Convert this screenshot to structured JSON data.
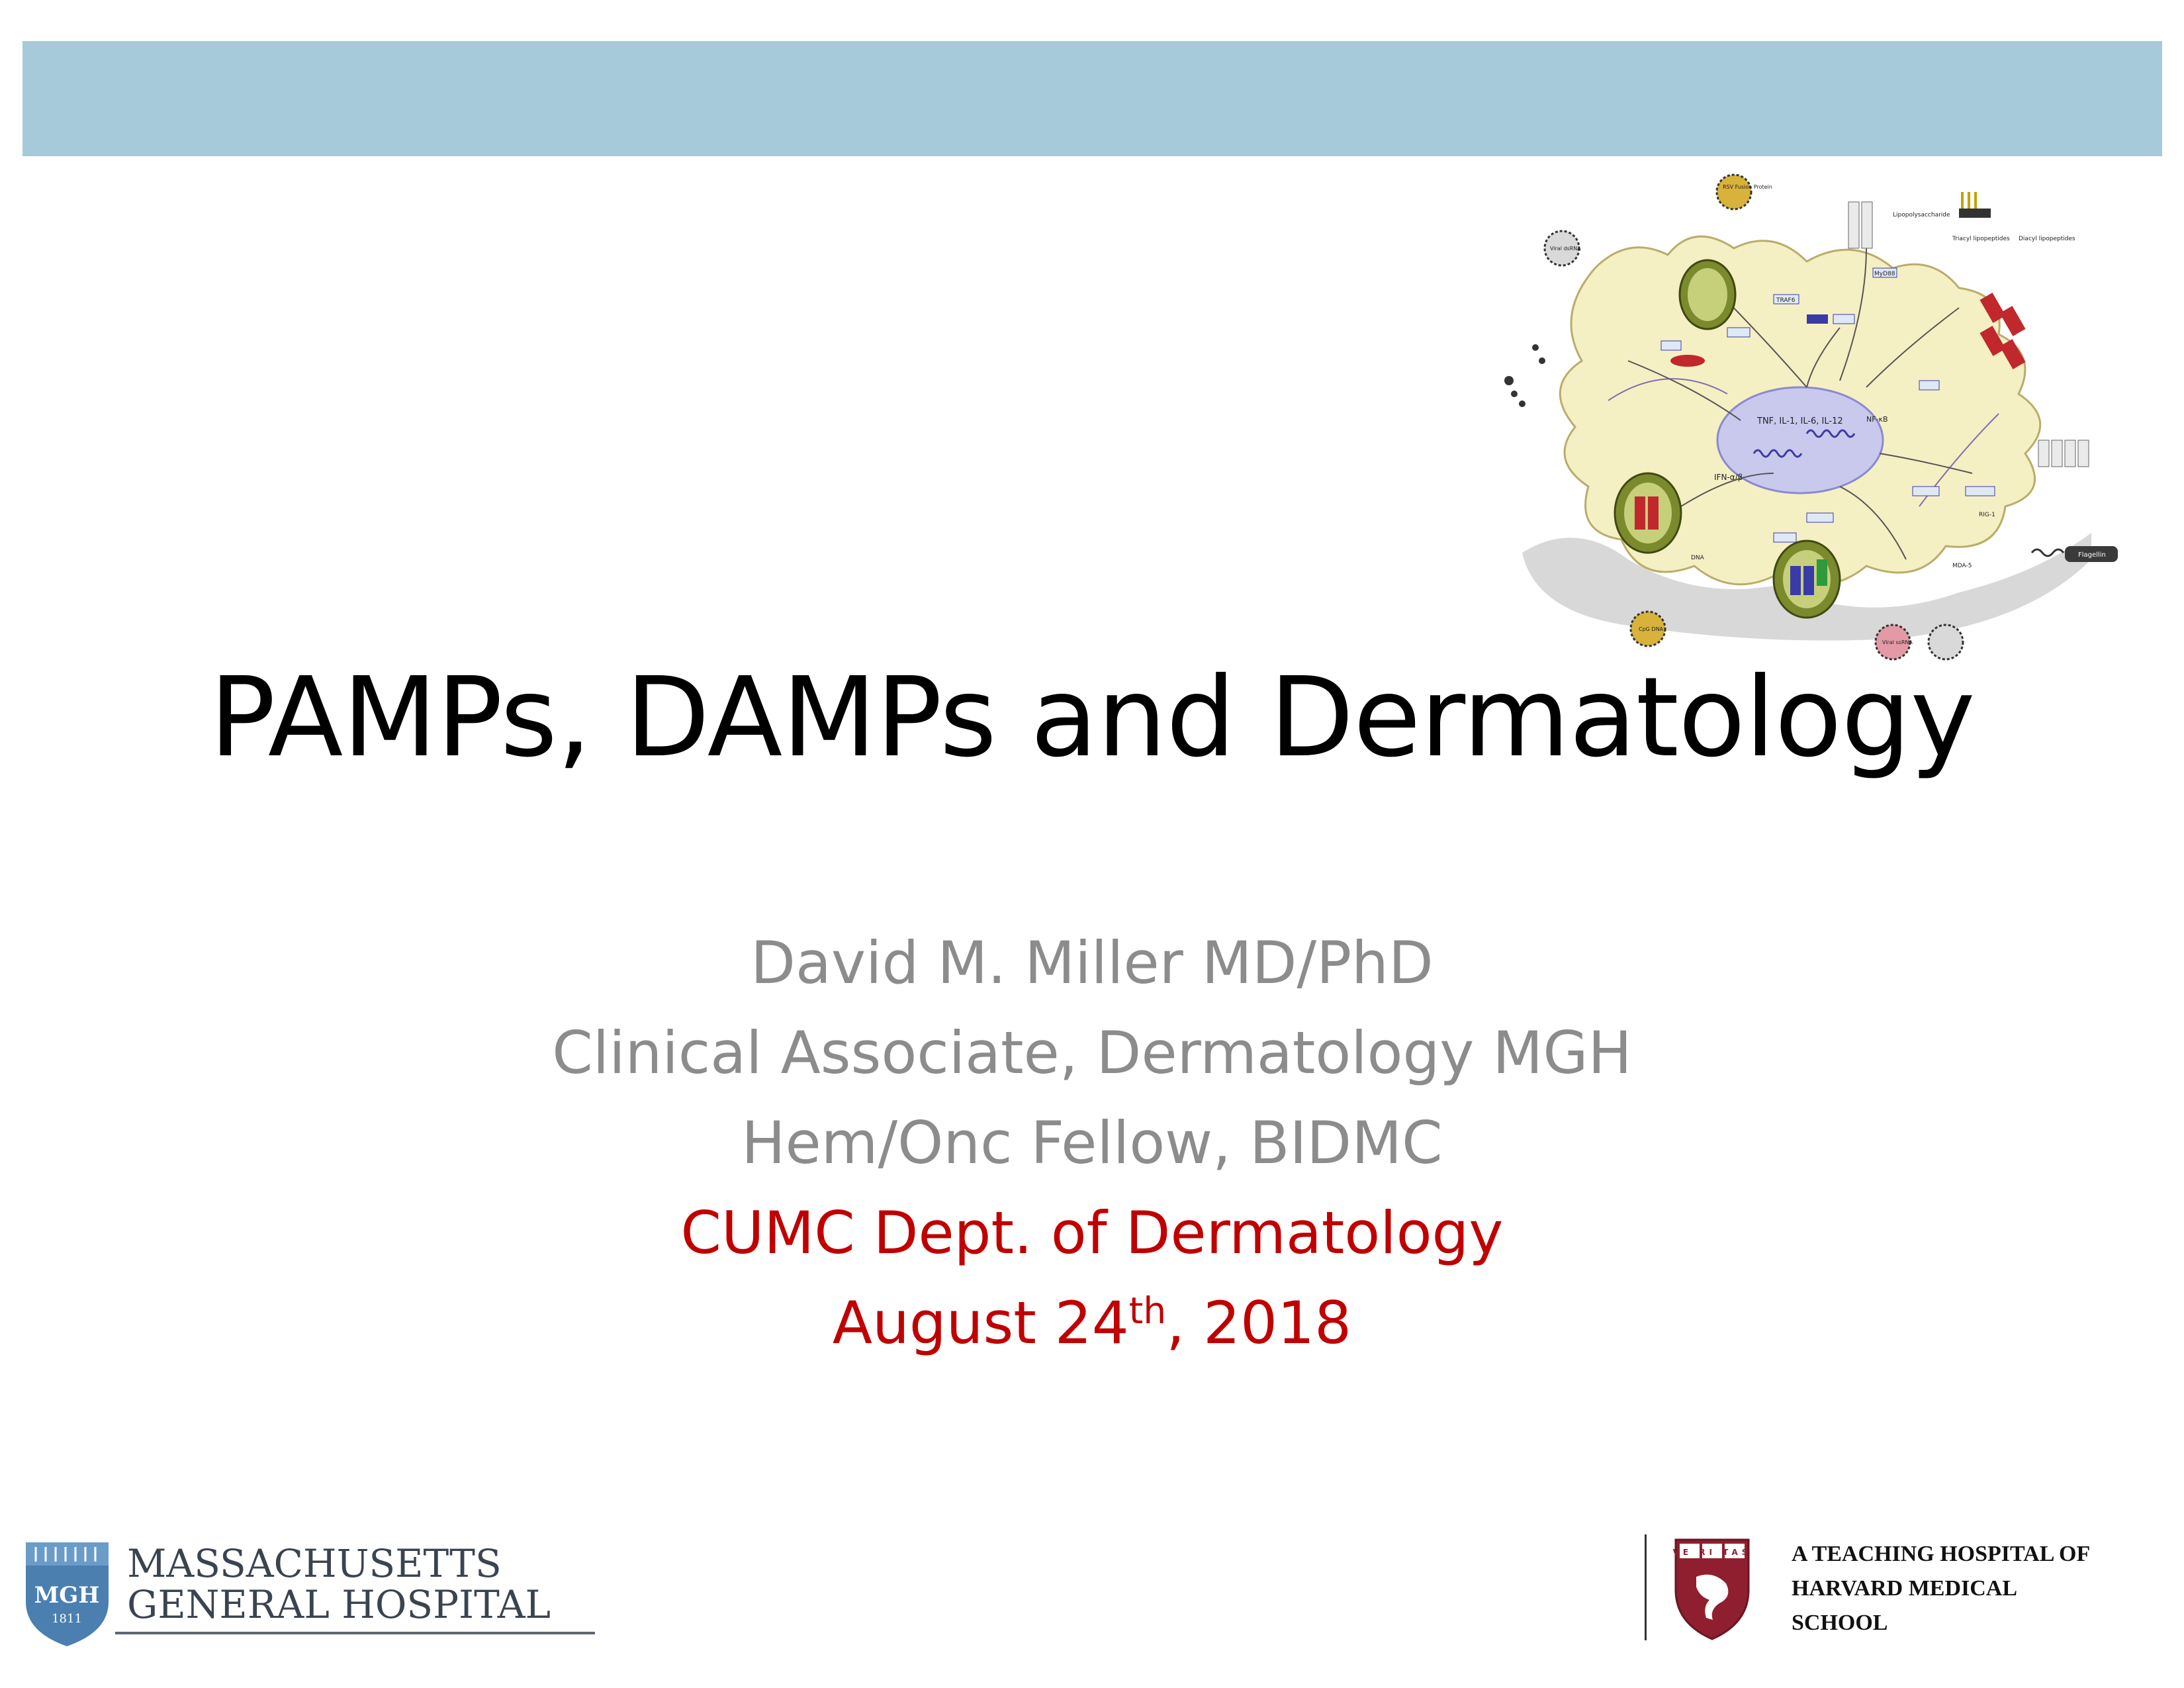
{
  "slide": {
    "title": "PAMPs, DAMPs and Dermatology",
    "presenter_name": "David M. Miller MD/PhD",
    "role_1": "Clinical Associate, Dermatology MGH",
    "role_2": "Hem/Onc Fellow, BIDMC",
    "venue": "CUMC Dept. of Dermatology",
    "date_prefix": "August 24",
    "date_superscript": "th",
    "date_suffix": ", 2018"
  },
  "diagram": {
    "labels": {
      "rsv": "RSV Fusion Protein",
      "lps": "Lipopolysaccharide",
      "triacyl": "Triacyl lipopeptides",
      "diacyl": "Diacyl lipopeptides",
      "viral_dsrna": "Viral dsRNA",
      "cytokines": "TNF, IL-1, IL-6, IL-12",
      "ifn": "IFN-α/β",
      "dna": "DNA",
      "cpg": "CpG DNA",
      "viral_ssrna": "Viral ssRNA",
      "flagellin": "Flagellin",
      "mda5": "MDA-5",
      "rig1": "RIG-1",
      "nfkb": "NF-κB",
      "traf6": "TRAF6",
      "myd88": "MyD88"
    },
    "colors": {
      "cell_fill": "#f5efc4",
      "nucleus_fill": "#c9c9ee",
      "accent_blue": "#3a3aa8",
      "accent_red": "#c0282d"
    }
  },
  "footer": {
    "mgh_line_1": "MASSACHUSETTS",
    "mgh_line_2": "GENERAL HOSPITAL",
    "mgh_shield_text": "MGH",
    "mgh_shield_year": "1811",
    "harvard_text": "A TEACHING HOSPITAL OF\nHARVARD MEDICAL\nSCHOOL",
    "harvard_motto": "VE RI TAS"
  },
  "theme": {
    "top_bar_color": "#a6cad9",
    "title_color": "#000000",
    "subtitle_grey": "#8c8c8c",
    "subtitle_red": "#c00000"
  }
}
